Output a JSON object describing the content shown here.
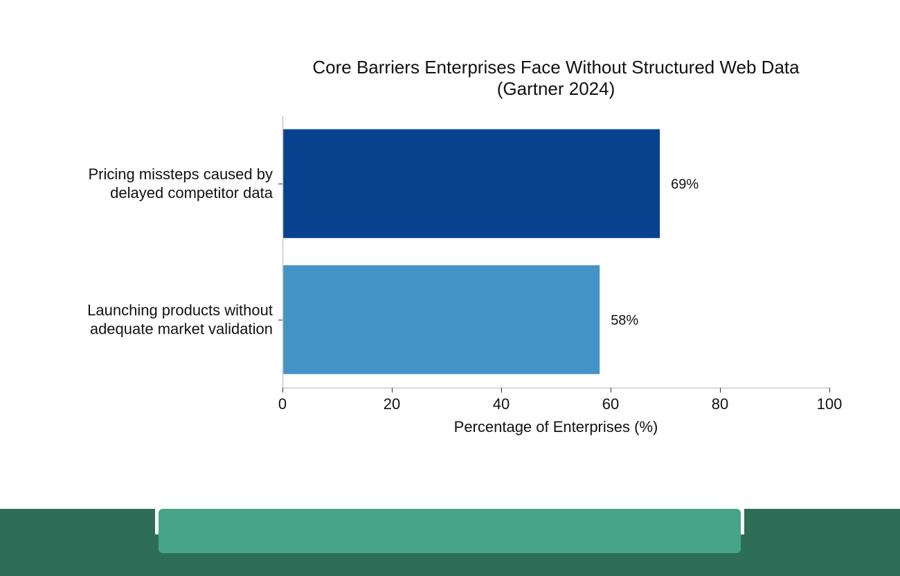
{
  "chart_data": {
    "type": "bar",
    "orientation": "horizontal",
    "title": "Core Barriers Enterprises Face Without Structured Web Data",
    "subtitle": "(Gartner 2024)",
    "categories": [
      "Pricing missteps caused by delayed competitor data",
      "Launching products without adequate market validation"
    ],
    "category_lines": [
      [
        "Pricing missteps caused by",
        "delayed competitor data"
      ],
      [
        "Launching products without",
        "adequate market validation"
      ]
    ],
    "values": [
      69,
      58
    ],
    "data_labels": [
      "69%",
      "58%"
    ],
    "bar_colors": [
      "#08428f",
      "#4393c6"
    ],
    "xlabel": "Percentage of Enterprises (%)",
    "ylabel": "",
    "xlim": [
      0,
      100
    ],
    "xticks": [
      0,
      20,
      40,
      60,
      80,
      100
    ],
    "xtick_labels": [
      "0",
      "20",
      "40",
      "60",
      "80",
      "100"
    ],
    "grid": false,
    "legend": "none"
  },
  "colors": {
    "axis": "#cccccc",
    "text": "#111111",
    "footer_dark": "#2e6e58",
    "footer_panel": "#47a488"
  }
}
